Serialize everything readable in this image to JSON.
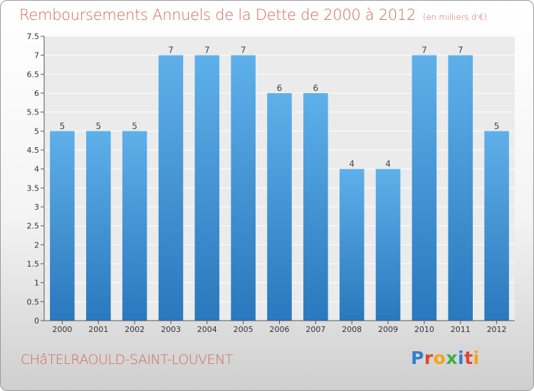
{
  "chart_data": {
    "type": "bar",
    "title": "Remboursements Annuels de la Dette de 2000 à 2012",
    "subtitle": "(en milliers d'€)",
    "categories": [
      "2000",
      "2001",
      "2002",
      "2003",
      "2004",
      "2005",
      "2006",
      "2007",
      "2008",
      "2009",
      "2010",
      "2011",
      "2012"
    ],
    "values": [
      5,
      5,
      5,
      7,
      7,
      7,
      6,
      6,
      4,
      4,
      7,
      7,
      5
    ],
    "data_labels": [
      "5",
      "5",
      "5",
      "7",
      "7",
      "7",
      "6",
      "6",
      "4",
      "4",
      "7",
      "7",
      "5"
    ],
    "yticks": [
      "0",
      "0.5",
      "1",
      "1.5",
      "2",
      "2.5",
      "3",
      "3.5",
      "4",
      "4.5",
      "5",
      "5.5",
      "6",
      "6.5",
      "7",
      "7.5"
    ],
    "ylim": [
      0,
      7.5
    ],
    "grid": true,
    "xlabel": "",
    "ylabel": "",
    "bar_color": "#4e9fdc",
    "title_color": "#d06a56"
  },
  "footer": {
    "commune": "CHâTELRAOULD-SAINT-LOUVENT",
    "logo_letters": [
      "P",
      "r",
      "o",
      "x",
      "i",
      "t",
      "i"
    ]
  }
}
